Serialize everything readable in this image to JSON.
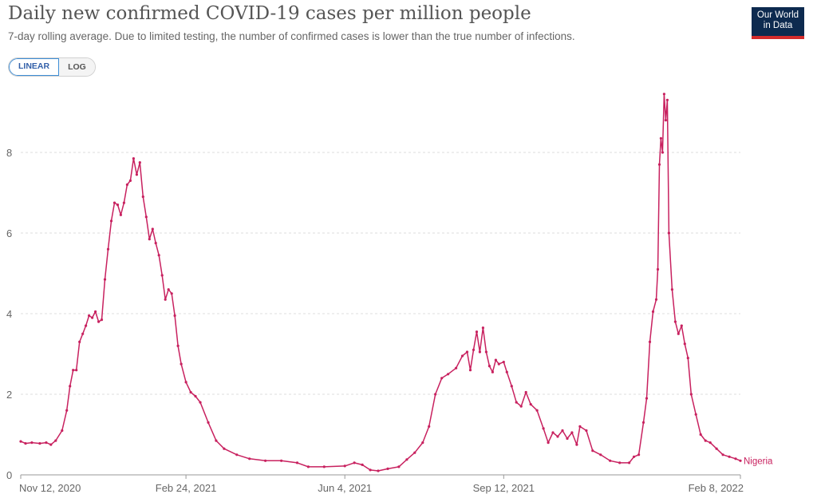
{
  "header": {
    "title": "Daily new confirmed COVID-19 cases per million people",
    "subtitle": "7-day rolling average. Due to limited testing, the number of confirmed cases is lower than the true number of infections.",
    "logo_line1": "Our World",
    "logo_line2": "in Data"
  },
  "controls": {
    "linear_label": "LINEAR",
    "log_label": "LOG",
    "selected": "LINEAR"
  },
  "colors": {
    "series": "#c8215f",
    "grid": "#dddddd",
    "axis": "#999999",
    "logo_bg": "#0d2a4f",
    "logo_accent": "#d42b2b",
    "toggle_active": "#3d8dd6"
  },
  "chart_data": {
    "type": "line",
    "title": "Daily new confirmed COVID-19 cases per million people",
    "subtitle": "7-day rolling average. Due to limited testing, the number of confirmed cases is lower than the true number of infections.",
    "xlabel": "",
    "ylabel": "",
    "ylim": [
      0,
      9.5
    ],
    "xlim": [
      "2020-11-12",
      "2022-02-08"
    ],
    "yticks": [
      0,
      2,
      4,
      6,
      8
    ],
    "ytick_labels": [
      "0",
      "2",
      "4",
      "6",
      "8"
    ],
    "xticks": [
      "2020-11-12",
      "2021-02-24",
      "2021-06-04",
      "2021-09-12",
      "2022-02-08"
    ],
    "xtick_labels": [
      "Nov 12, 2020",
      "Feb 24, 2021",
      "Jun 4, 2021",
      "Sep 12, 2021",
      "Feb 8, 2022"
    ],
    "grid": true,
    "legend": "inline-end",
    "series": [
      {
        "name": "Nigeria",
        "color": "#c8215f",
        "points": [
          [
            "2020-11-12",
            0.83
          ],
          [
            "2020-11-15",
            0.78
          ],
          [
            "2020-11-19",
            0.8
          ],
          [
            "2020-11-24",
            0.78
          ],
          [
            "2020-11-28",
            0.8
          ],
          [
            "2020-12-01",
            0.75
          ],
          [
            "2020-12-04",
            0.85
          ],
          [
            "2020-12-08",
            1.1
          ],
          [
            "2020-12-11",
            1.6
          ],
          [
            "2020-12-13",
            2.2
          ],
          [
            "2020-12-15",
            2.6
          ],
          [
            "2020-12-17",
            2.6
          ],
          [
            "2020-12-19",
            3.3
          ],
          [
            "2020-12-21",
            3.5
          ],
          [
            "2020-12-23",
            3.7
          ],
          [
            "2020-12-25",
            3.95
          ],
          [
            "2020-12-27",
            3.9
          ],
          [
            "2020-12-29",
            4.05
          ],
          [
            "2020-12-31",
            3.8
          ],
          [
            "2021-01-02",
            3.85
          ],
          [
            "2021-01-04",
            4.85
          ],
          [
            "2021-01-06",
            5.6
          ],
          [
            "2021-01-08",
            6.3
          ],
          [
            "2021-01-10",
            6.75
          ],
          [
            "2021-01-12",
            6.7
          ],
          [
            "2021-01-14",
            6.45
          ],
          [
            "2021-01-16",
            6.75
          ],
          [
            "2021-01-18",
            7.2
          ],
          [
            "2021-01-20",
            7.3
          ],
          [
            "2021-01-22",
            7.85
          ],
          [
            "2021-01-24",
            7.45
          ],
          [
            "2021-01-26",
            7.75
          ],
          [
            "2021-01-28",
            6.9
          ],
          [
            "2021-01-30",
            6.4
          ],
          [
            "2021-02-01",
            5.85
          ],
          [
            "2021-02-03",
            6.1
          ],
          [
            "2021-02-05",
            5.75
          ],
          [
            "2021-02-07",
            5.45
          ],
          [
            "2021-02-09",
            4.95
          ],
          [
            "2021-02-11",
            4.35
          ],
          [
            "2021-02-13",
            4.6
          ],
          [
            "2021-02-15",
            4.5
          ],
          [
            "2021-02-17",
            3.95
          ],
          [
            "2021-02-19",
            3.2
          ],
          [
            "2021-02-21",
            2.75
          ],
          [
            "2021-02-24",
            2.3
          ],
          [
            "2021-02-27",
            2.05
          ],
          [
            "2021-03-02",
            1.95
          ],
          [
            "2021-03-05",
            1.8
          ],
          [
            "2021-03-10",
            1.3
          ],
          [
            "2021-03-15",
            0.85
          ],
          [
            "2021-03-20",
            0.65
          ],
          [
            "2021-03-28",
            0.5
          ],
          [
            "2021-04-05",
            0.4
          ],
          [
            "2021-04-15",
            0.35
          ],
          [
            "2021-04-25",
            0.35
          ],
          [
            "2021-05-05",
            0.3
          ],
          [
            "2021-05-12",
            0.2
          ],
          [
            "2021-05-22",
            0.2
          ],
          [
            "2021-06-04",
            0.22
          ],
          [
            "2021-06-10",
            0.3
          ],
          [
            "2021-06-15",
            0.25
          ],
          [
            "2021-06-20",
            0.12
          ],
          [
            "2021-06-25",
            0.1
          ],
          [
            "2021-07-01",
            0.15
          ],
          [
            "2021-07-08",
            0.2
          ],
          [
            "2021-07-13",
            0.38
          ],
          [
            "2021-07-18",
            0.55
          ],
          [
            "2021-07-23",
            0.8
          ],
          [
            "2021-07-27",
            1.2
          ],
          [
            "2021-07-31",
            2.0
          ],
          [
            "2021-08-04",
            2.4
          ],
          [
            "2021-08-08",
            2.5
          ],
          [
            "2021-08-13",
            2.65
          ],
          [
            "2021-08-17",
            2.95
          ],
          [
            "2021-08-20",
            3.05
          ],
          [
            "2021-08-22",
            2.6
          ],
          [
            "2021-08-24",
            3.1
          ],
          [
            "2021-08-26",
            3.55
          ],
          [
            "2021-08-28",
            3.05
          ],
          [
            "2021-08-30",
            3.65
          ],
          [
            "2021-09-01",
            3.05
          ],
          [
            "2021-09-03",
            2.7
          ],
          [
            "2021-09-05",
            2.55
          ],
          [
            "2021-09-07",
            2.85
          ],
          [
            "2021-09-09",
            2.75
          ],
          [
            "2021-09-12",
            2.8
          ],
          [
            "2021-09-14",
            2.55
          ],
          [
            "2021-09-17",
            2.2
          ],
          [
            "2021-09-20",
            1.8
          ],
          [
            "2021-09-23",
            1.7
          ],
          [
            "2021-09-26",
            2.05
          ],
          [
            "2021-09-29",
            1.75
          ],
          [
            "2021-10-03",
            1.6
          ],
          [
            "2021-10-07",
            1.15
          ],
          [
            "2021-10-10",
            0.8
          ],
          [
            "2021-10-13",
            1.05
          ],
          [
            "2021-10-16",
            0.95
          ],
          [
            "2021-10-19",
            1.1
          ],
          [
            "2021-10-22",
            0.9
          ],
          [
            "2021-10-25",
            1.05
          ],
          [
            "2021-10-28",
            0.75
          ],
          [
            "2021-10-30",
            1.2
          ],
          [
            "2021-11-03",
            1.1
          ],
          [
            "2021-11-07",
            0.6
          ],
          [
            "2021-11-12",
            0.5
          ],
          [
            "2021-11-18",
            0.35
          ],
          [
            "2021-11-24",
            0.3
          ],
          [
            "2021-11-30",
            0.3
          ],
          [
            "2021-12-03",
            0.45
          ],
          [
            "2021-12-06",
            0.5
          ],
          [
            "2021-12-09",
            1.3
          ],
          [
            "2021-12-11",
            1.9
          ],
          [
            "2021-12-13",
            3.3
          ],
          [
            "2021-12-15",
            4.05
          ],
          [
            "2021-12-17",
            4.35
          ],
          [
            "2021-12-18",
            5.1
          ],
          [
            "2021-12-19",
            7.7
          ],
          [
            "2021-12-20",
            8.35
          ],
          [
            "2021-12-21",
            8.0
          ],
          [
            "2021-12-22",
            9.45
          ],
          [
            "2021-12-23",
            8.8
          ],
          [
            "2021-12-24",
            9.3
          ],
          [
            "2021-12-25",
            6.0
          ],
          [
            "2021-12-27",
            4.6
          ],
          [
            "2021-12-29",
            3.8
          ],
          [
            "2021-12-31",
            3.5
          ],
          [
            "2022-01-02",
            3.7
          ],
          [
            "2022-01-04",
            3.25
          ],
          [
            "2022-01-06",
            2.9
          ],
          [
            "2022-01-08",
            2.0
          ],
          [
            "2022-01-11",
            1.5
          ],
          [
            "2022-01-14",
            1.0
          ],
          [
            "2022-01-17",
            0.85
          ],
          [
            "2022-01-20",
            0.8
          ],
          [
            "2022-01-24",
            0.65
          ],
          [
            "2022-01-28",
            0.5
          ],
          [
            "2022-02-01",
            0.45
          ],
          [
            "2022-02-05",
            0.4
          ],
          [
            "2022-02-08",
            0.35
          ]
        ]
      }
    ]
  }
}
